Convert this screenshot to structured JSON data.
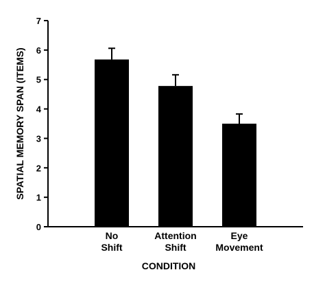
{
  "chart_data": {
    "type": "bar",
    "categories": [
      [
        "No",
        "Shift"
      ],
      [
        "Attention",
        "Shift"
      ],
      [
        "Eye",
        "Movement"
      ]
    ],
    "values": [
      5.68,
      4.78,
      3.5
    ],
    "error_bars": [
      0.38,
      0.38,
      0.33
    ],
    "xlabel": "CONDITION",
    "ylabel": "SPATIAL MEMORY SPAN (ITEMS)",
    "ylim": [
      0,
      7
    ],
    "yticks": [
      0,
      1,
      2,
      3,
      4,
      5,
      6,
      7
    ],
    "grid": false,
    "bar_color": "#000000"
  }
}
